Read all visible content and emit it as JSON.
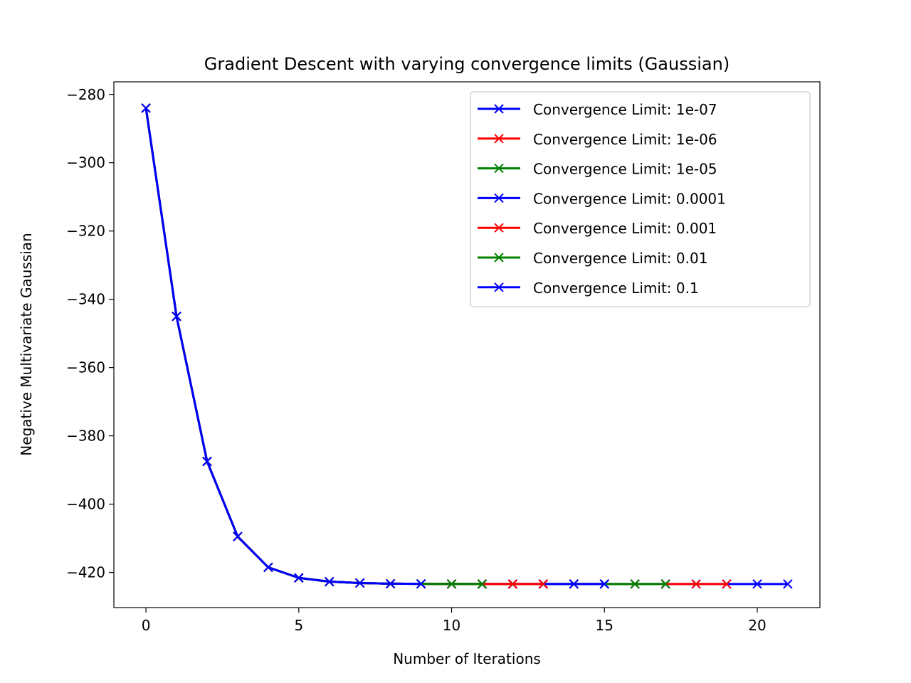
{
  "chart_data": {
    "type": "line",
    "title": "Gradient Descent with varying convergence limits (Gaussian)",
    "xlabel": "Number of Iterations",
    "ylabel": "Negative Multivariate Gaussian",
    "xlim": [
      -1.05,
      22.05
    ],
    "ylim": [
      -430.3,
      -276.3
    ],
    "xticks": [
      0,
      5,
      10,
      15,
      20
    ],
    "yticks": [
      -280,
      -300,
      -320,
      -340,
      -360,
      -380,
      -400,
      -420
    ],
    "grid": false,
    "legend_position": "top-right",
    "marker": "x",
    "series": [
      {
        "name": "Convergence Limit: 1e-07",
        "color": "#0000ff",
        "x": [
          0,
          1,
          2,
          3,
          4,
          5,
          6,
          7,
          8,
          9,
          10,
          11,
          12,
          13,
          14,
          15,
          16,
          17,
          18,
          19,
          20,
          21
        ],
        "y": [
          -284,
          -345,
          -387.5,
          -409.5,
          -418.5,
          -421.6,
          -422.7,
          -423.1,
          -423.3,
          -423.35,
          -423.38,
          -423.4,
          -423.4,
          -423.4,
          -423.4,
          -423.4,
          -423.4,
          -423.4,
          -423.4,
          -423.4,
          -423.4,
          -423.4
        ]
      },
      {
        "name": "Convergence Limit: 1e-06",
        "color": "#ff0000",
        "x": [
          0,
          1,
          2,
          3,
          4,
          5,
          6,
          7,
          8,
          9,
          10,
          11,
          12,
          13,
          14,
          15,
          16,
          17,
          18,
          19
        ],
        "y": [
          -284,
          -345,
          -387.5,
          -409.5,
          -418.5,
          -421.6,
          -422.7,
          -423.1,
          -423.3,
          -423.35,
          -423.38,
          -423.4,
          -423.4,
          -423.4,
          -423.4,
          -423.4,
          -423.4,
          -423.4,
          -423.4,
          -423.4
        ]
      },
      {
        "name": "Convergence Limit: 1e-05",
        "color": "#008000",
        "x": [
          0,
          1,
          2,
          3,
          4,
          5,
          6,
          7,
          8,
          9,
          10,
          11,
          12,
          13,
          14,
          15,
          16,
          17
        ],
        "y": [
          -284,
          -345,
          -387.5,
          -409.5,
          -418.5,
          -421.6,
          -422.7,
          -423.1,
          -423.3,
          -423.35,
          -423.38,
          -423.4,
          -423.4,
          -423.4,
          -423.4,
          -423.4,
          -423.4,
          -423.4
        ]
      },
      {
        "name": "Convergence Limit: 0.0001",
        "color": "#0000ff",
        "x": [
          0,
          1,
          2,
          3,
          4,
          5,
          6,
          7,
          8,
          9,
          10,
          11,
          12,
          13,
          14,
          15
        ],
        "y": [
          -284,
          -345,
          -387.5,
          -409.5,
          -418.5,
          -421.6,
          -422.7,
          -423.1,
          -423.3,
          -423.35,
          -423.38,
          -423.4,
          -423.4,
          -423.4,
          -423.4,
          -423.4
        ]
      },
      {
        "name": "Convergence Limit: 0.001",
        "color": "#ff0000",
        "x": [
          0,
          1,
          2,
          3,
          4,
          5,
          6,
          7,
          8,
          9,
          10,
          11,
          12,
          13
        ],
        "y": [
          -284,
          -345,
          -387.5,
          -409.5,
          -418.5,
          -421.6,
          -422.7,
          -423.1,
          -423.3,
          -423.35,
          -423.38,
          -423.4,
          -423.4,
          -423.4
        ]
      },
      {
        "name": "Convergence Limit: 0.01",
        "color": "#008000",
        "x": [
          0,
          1,
          2,
          3,
          4,
          5,
          6,
          7,
          8,
          9,
          10,
          11
        ],
        "y": [
          -284,
          -345,
          -387.5,
          -409.5,
          -418.5,
          -421.6,
          -422.7,
          -423.1,
          -423.3,
          -423.35,
          -423.38,
          -423.4
        ]
      },
      {
        "name": "Convergence Limit: 0.1",
        "color": "#0000ff",
        "x": [
          0,
          1,
          2,
          3,
          4,
          5,
          6,
          7,
          8,
          9
        ],
        "y": [
          -284,
          -345,
          -387.5,
          -409.5,
          -418.5,
          -421.6,
          -422.7,
          -423.1,
          -423.3,
          -423.35
        ]
      }
    ]
  }
}
